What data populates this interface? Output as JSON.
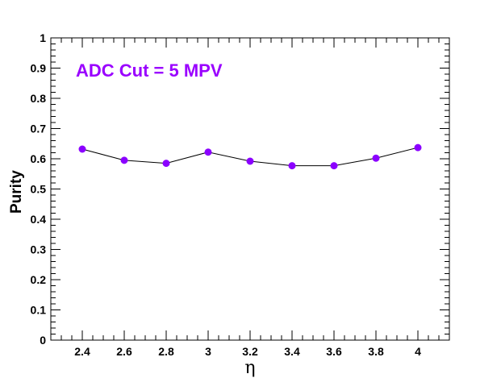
{
  "chart_data": {
    "type": "line",
    "title": "",
    "annotation": "ADC Cut = 5 MPV",
    "xlabel": "η",
    "ylabel": "Purity",
    "xlim": [
      2.25,
      4.15
    ],
    "ylim": [
      0,
      1
    ],
    "x_ticks": [
      "2.4",
      "2.6",
      "2.8",
      "3",
      "3.2",
      "3.4",
      "3.6",
      "3.8",
      "4"
    ],
    "x_tick_values": [
      2.4,
      2.6,
      2.8,
      3.0,
      3.2,
      3.4,
      3.6,
      3.8,
      4.0
    ],
    "y_ticks": [
      "0",
      "0.1",
      "0.2",
      "0.3",
      "0.4",
      "0.5",
      "0.6",
      "0.7",
      "0.8",
      "0.9",
      "1"
    ],
    "y_tick_values": [
      0,
      0.1,
      0.2,
      0.3,
      0.4,
      0.5,
      0.6,
      0.7,
      0.8,
      0.9,
      1.0
    ],
    "grid": false,
    "series": [
      {
        "x": [
          2.4,
          2.6,
          2.8,
          3.0,
          3.2,
          3.4,
          3.6,
          3.8,
          4.0
        ],
        "y": [
          0.632,
          0.595,
          0.585,
          0.622,
          0.592,
          0.577,
          0.577,
          0.602,
          0.637
        ],
        "line_color": "#000000",
        "marker_color": "#8b00ff"
      }
    ],
    "annotation_color": "#9a00ff"
  }
}
